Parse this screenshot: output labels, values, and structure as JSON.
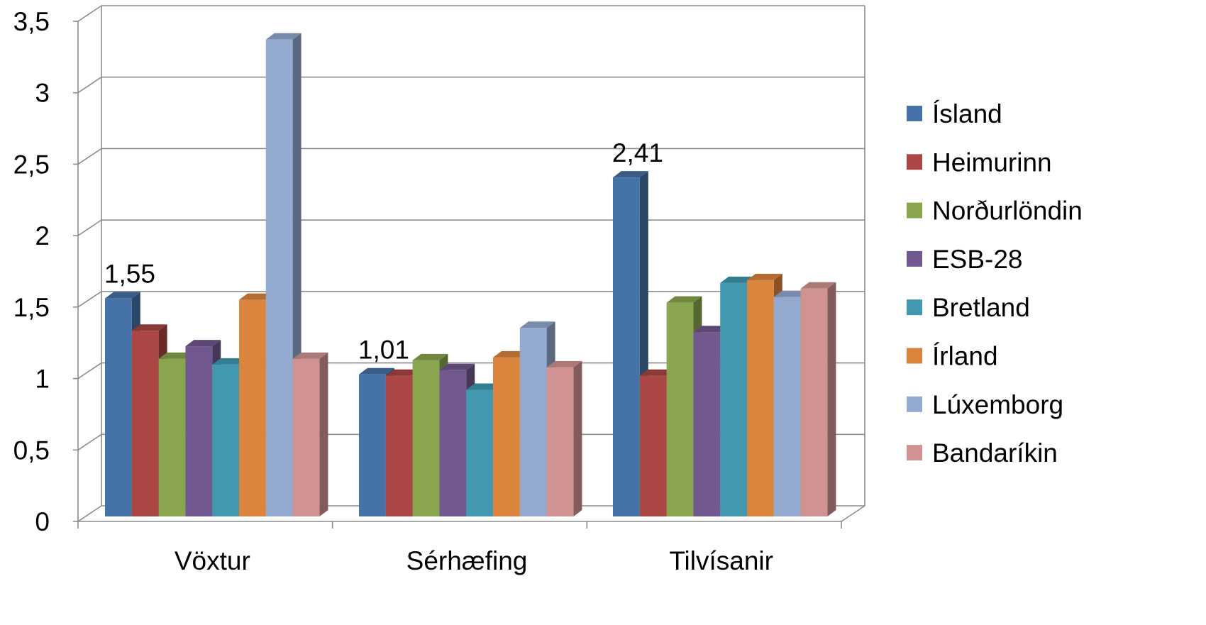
{
  "chart_data": {
    "type": "bar",
    "style": "3d-clustered-column",
    "categories": [
      "Vöxtur",
      "Sérhæfing",
      "Tilvísanir"
    ],
    "series": [
      {
        "name": "Ísland",
        "color": "#4572A7",
        "values": [
          1.55,
          1.01,
          2.41
        ]
      },
      {
        "name": "Heimurinn",
        "color": "#AA4643",
        "values": [
          1.32,
          1.0,
          1.0
        ]
      },
      {
        "name": "Norðurlöndin",
        "color": "#89A54E",
        "values": [
          1.12,
          1.11,
          1.52
        ]
      },
      {
        "name": "ESB-28",
        "color": "#71588F",
        "values": [
          1.21,
          1.04,
          1.31
        ]
      },
      {
        "name": "Bretland",
        "color": "#4198AF",
        "values": [
          1.08,
          0.9,
          1.66
        ]
      },
      {
        "name": "Írland",
        "color": "#DB843D",
        "values": [
          1.54,
          1.13,
          1.68
        ]
      },
      {
        "name": "Lúxemborg",
        "color": "#93A9CF",
        "values": [
          3.39,
          1.34,
          1.56
        ]
      },
      {
        "name": "Bandaríkin",
        "color": "#D19392",
        "values": [
          1.12,
          1.06,
          1.62
        ]
      }
    ],
    "data_labels": [
      {
        "category": "Vöxtur",
        "series": "Ísland",
        "text": "1,55"
      },
      {
        "category": "Sérhæfing",
        "series": "Ísland",
        "text": "1,01"
      },
      {
        "category": "Tilvísanir",
        "series": "Ísland",
        "text": "2,41"
      }
    ],
    "ylim": [
      0,
      3.5
    ],
    "yticks": [
      {
        "value": 0,
        "label": "0"
      },
      {
        "value": 0.5,
        "label": "0,5"
      },
      {
        "value": 1,
        "label": "1"
      },
      {
        "value": 1.5,
        "label": "1,5"
      },
      {
        "value": 2,
        "label": "2"
      },
      {
        "value": 2.5,
        "label": "2,5"
      },
      {
        "value": 3,
        "label": "3"
      },
      {
        "value": 3.5,
        "label": "3,5"
      }
    ],
    "grid": true,
    "legend_position": "right",
    "title": "",
    "xlabel": "",
    "ylabel": ""
  }
}
